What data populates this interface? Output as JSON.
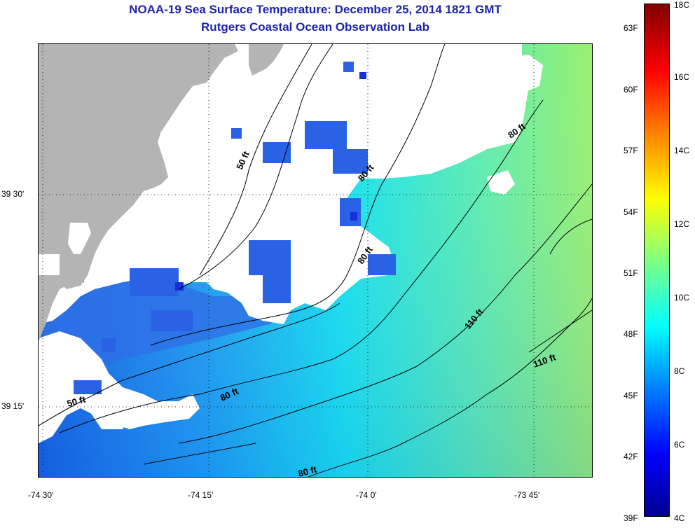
{
  "title": {
    "line1": "NOAA-19 Sea Surface Temperature:  December 25, 2014 1821 GMT",
    "line2": "Rutgers Coastal Ocean Observation Lab"
  },
  "map": {
    "lon_ticks": [
      "-74 30'",
      "-74 15'",
      "-74 0'",
      "-73 45'"
    ],
    "lat_ticks": [
      "39 30'",
      "39 15'"
    ],
    "depth_labels": [
      "50 ft",
      "80 ft",
      "80 ft",
      "80 ft",
      "110 ft",
      "110 ft",
      "50 ft",
      "80 ft",
      "80 ft"
    ],
    "colors": {
      "land": "#b4b4b4",
      "cloud": "#ffffff",
      "contour": "#000000"
    }
  },
  "colorbar": {
    "fahrenheit": [
      "63F",
      "60F",
      "57F",
      "54F",
      "51F",
      "48F",
      "45F",
      "42F",
      "39F"
    ],
    "celsius": [
      "18C",
      "16C",
      "14C",
      "12C",
      "10C",
      "8C",
      "6C",
      "4C"
    ],
    "stops": [
      "#00008f",
      "#0000ff",
      "#0080ff",
      "#00ffff",
      "#80ff80",
      "#ffff00",
      "#ff8000",
      "#ff0000",
      "#800000"
    ]
  }
}
